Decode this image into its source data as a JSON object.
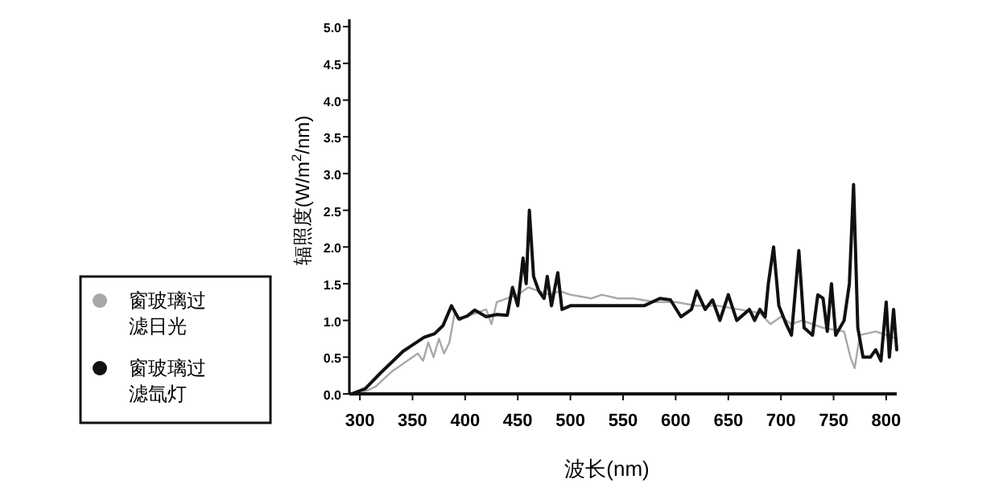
{
  "chart_data": {
    "type": "line",
    "xlabel": "波长(nm)",
    "ylabel": "辐照度(W/m$^{2}$/nm)",
    "xlim": [
      290,
      810
    ],
    "ylim": [
      0,
      5.1
    ],
    "xticks": [
      300,
      350,
      400,
      450,
      500,
      550,
      600,
      650,
      700,
      750,
      800
    ],
    "yticks": [
      {
        "value": 0,
        "label": "0.0"
      },
      {
        "value": 0.5,
        "label": "0.5"
      },
      {
        "value": 1,
        "label": "1.0"
      },
      {
        "value": 1.5,
        "label": "1.5"
      },
      {
        "value": 2,
        "label": "2.0"
      },
      {
        "value": 2.5,
        "label": "2.5"
      },
      {
        "value": 3,
        "label": "3.0"
      },
      {
        "value": 3.5,
        "label": "3.5"
      },
      {
        "value": 4,
        "label": "4.0"
      },
      {
        "value": 4.5,
        "label": "4.5"
      },
      {
        "value": 5,
        "label": "5.0"
      }
    ],
    "legend": "left",
    "grid": false,
    "marker": "none",
    "line_style": "solid",
    "series": [
      {
        "name": "窗玻璃过滤日光",
        "color": "#a8a8a8",
        "x": [
          300,
          315,
          330,
          345,
          355,
          360,
          365,
          370,
          375,
          380,
          385,
          390,
          395,
          400,
          410,
          420,
          425,
          430,
          440,
          450,
          460,
          470,
          480,
          490,
          500,
          520,
          530,
          545,
          560,
          580,
          600,
          620,
          640,
          660,
          680,
          690,
          700,
          710,
          720,
          740,
          760,
          766,
          770,
          775,
          790,
          810
        ],
        "values": [
          0,
          0.1,
          0.3,
          0.45,
          0.55,
          0.45,
          0.7,
          0.5,
          0.75,
          0.55,
          0.7,
          1.1,
          1.0,
          1.05,
          1.1,
          1.15,
          0.95,
          1.25,
          1.3,
          1.35,
          1.45,
          1.4,
          1.35,
          1.4,
          1.35,
          1.3,
          1.35,
          1.3,
          1.3,
          1.25,
          1.25,
          1.2,
          1.2,
          1.15,
          1.1,
          0.95,
          1.05,
          0.95,
          1.0,
          0.9,
          0.85,
          0.5,
          0.35,
          0.8,
          0.85,
          0.75
        ]
      },
      {
        "name": "窗玻璃过滤氙灯",
        "color": "#111111",
        "x": [
          292,
          305,
          320,
          341,
          361,
          371,
          379,
          387,
          394,
          402,
          409,
          420,
          430,
          440,
          445,
          450,
          455,
          458,
          461,
          465,
          470,
          475,
          478,
          482,
          488,
          492,
          500,
          550,
          570,
          585,
          595,
          605,
          615,
          620,
          628,
          635,
          642,
          650,
          658,
          670,
          675,
          680,
          685,
          688,
          693,
          698,
          705,
          710,
          717,
          722,
          730,
          735,
          740,
          744,
          748,
          752,
          760,
          765,
          769,
          773,
          778,
          785,
          790,
          795,
          800,
          803,
          807,
          810
        ],
        "values": [
          0,
          0.07,
          0.29,
          0.58,
          0.77,
          0.82,
          0.93,
          1.2,
          1.02,
          1.06,
          1.14,
          1.05,
          1.08,
          1.07,
          1.45,
          1.2,
          1.85,
          1.5,
          2.5,
          1.6,
          1.4,
          1.3,
          1.6,
          1.2,
          1.65,
          1.15,
          1.2,
          1.2,
          1.2,
          1.3,
          1.28,
          1.05,
          1.15,
          1.4,
          1.15,
          1.28,
          1.0,
          1.35,
          1.0,
          1.15,
          1.0,
          1.15,
          1.05,
          1.5,
          2.0,
          1.2,
          0.95,
          0.8,
          1.95,
          0.9,
          0.8,
          1.35,
          1.3,
          0.85,
          1.5,
          0.8,
          1.0,
          1.5,
          2.85,
          0.9,
          0.5,
          0.5,
          0.6,
          0.45,
          1.25,
          0.5,
          1.15,
          0.6
        ]
      }
    ]
  }
}
